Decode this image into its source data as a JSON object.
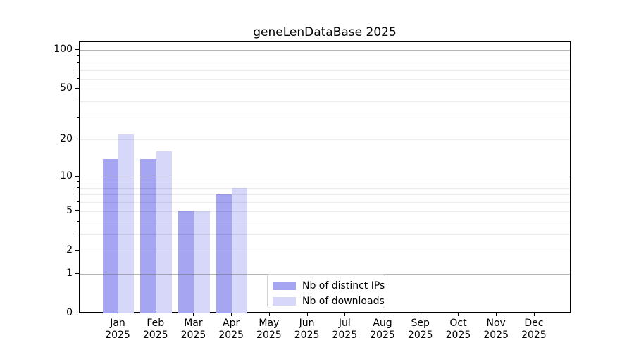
{
  "chart_data": {
    "type": "bar",
    "title": "geneLenDataBase 2025",
    "categories": [
      {
        "month": "Jan",
        "year": "2025"
      },
      {
        "month": "Feb",
        "year": "2025"
      },
      {
        "month": "Mar",
        "year": "2025"
      },
      {
        "month": "Apr",
        "year": "2025"
      },
      {
        "month": "May",
        "year": "2025"
      },
      {
        "month": "Jun",
        "year": "2025"
      },
      {
        "month": "Jul",
        "year": "2025"
      },
      {
        "month": "Aug",
        "year": "2025"
      },
      {
        "month": "Sep",
        "year": "2025"
      },
      {
        "month": "Oct",
        "year": "2025"
      },
      {
        "month": "Nov",
        "year": "2025"
      },
      {
        "month": "Dec",
        "year": "2025"
      }
    ],
    "series": [
      {
        "name": "Nb of distinct IPs",
        "color": "#a5a5f2",
        "values": [
          14,
          14,
          5,
          7,
          0,
          0,
          0,
          0,
          0,
          0,
          0,
          0
        ]
      },
      {
        "name": "Nb of downloads",
        "color": "#d7d7f9",
        "values": [
          22,
          16,
          5,
          8,
          0,
          0,
          0,
          0,
          0,
          0,
          0,
          0
        ]
      }
    ],
    "xlabel": "",
    "ylabel": "",
    "y_axis": {
      "scale": "symlog-log1p",
      "labeled_ticks": [
        100,
        50,
        20,
        10,
        5,
        2,
        1,
        0
      ],
      "minor_grid_ticks": [
        2,
        3,
        4,
        5,
        6,
        7,
        8,
        9,
        20,
        30,
        40,
        50,
        60,
        70,
        80,
        90
      ],
      "major_grid_ticks": [
        1,
        10,
        100
      ],
      "ylim": [
        0,
        117
      ]
    },
    "grid": true,
    "legend_position": "lower center"
  },
  "colors": {
    "background": "#ffffff",
    "spine": "#000000",
    "text": "#000000",
    "grid_minor": "rgba(0,0,0,0.075)",
    "grid_major": "rgba(110,110,110,0.5)",
    "series_ips": "#a5a5f2",
    "series_downloads": "#d7d7f9"
  }
}
